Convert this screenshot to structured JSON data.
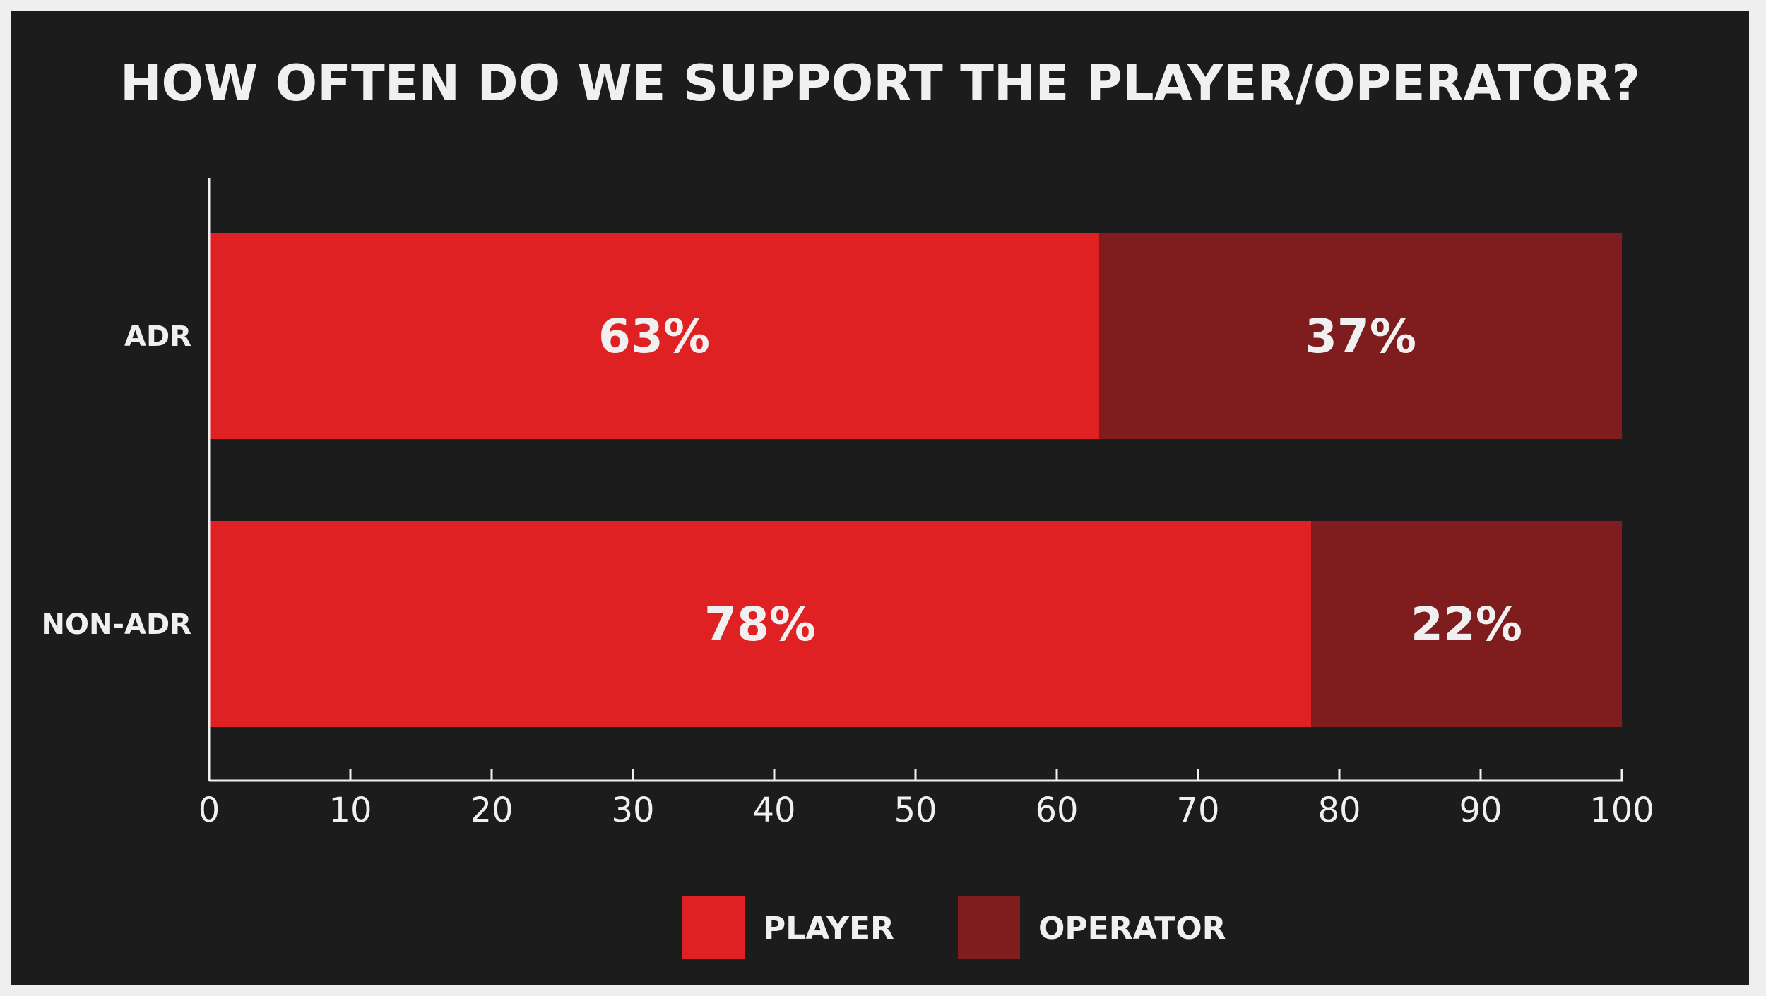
{
  "chart_data": {
    "type": "bar",
    "orientation": "horizontal",
    "stacked": true,
    "title": "HOW OFTEN DO WE SUPPORT THE PLAYER/OPERATOR?",
    "categories": [
      "ADR",
      "NON-ADR"
    ],
    "series": [
      {
        "name": "PLAYER",
        "color": "#df2124",
        "values": [
          63,
          78
        ],
        "labels": [
          "63%",
          "78%"
        ]
      },
      {
        "name": "OPERATOR",
        "color": "#7e1c1e",
        "values": [
          37,
          22
        ],
        "labels": [
          "37%",
          "22%"
        ]
      }
    ],
    "xlim": [
      0,
      100
    ],
    "xticks": [
      0,
      10,
      20,
      30,
      40,
      50,
      60,
      70,
      80,
      90,
      100
    ],
    "grid": false,
    "legend": "bottom-center"
  },
  "colors": {
    "background": "#1c1c1c",
    "frame": "#efefef",
    "text": "#f0f0f0",
    "axis": "#f0f0f0"
  }
}
